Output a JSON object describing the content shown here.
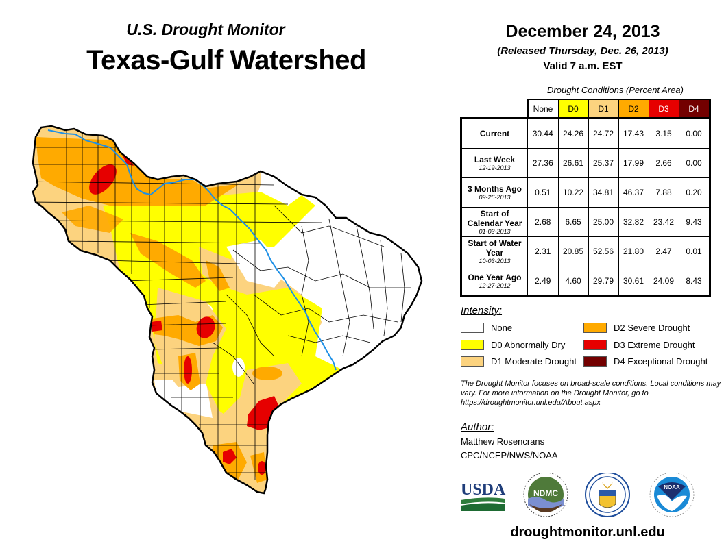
{
  "header": {
    "subtitle": "U.S. Drought Monitor",
    "title": "Texas-Gulf Watershed",
    "date": "December 24, 2013",
    "released": "(Released Thursday, Dec. 26, 2013)",
    "valid": "Valid 7 a.m. EST"
  },
  "colors": {
    "none": "#ffffff",
    "D0": "#ffff00",
    "D1": "#fcd37f",
    "D2": "#ffaa00",
    "D3": "#e60000",
    "D4": "#730000",
    "river": "#1e90e6"
  },
  "table": {
    "caption": "Drought Conditions (Percent Area)",
    "columns": [
      "None",
      "D0",
      "D1",
      "D2",
      "D3",
      "D4"
    ],
    "rows": [
      {
        "label": "Current",
        "date": "",
        "values": [
          "30.44",
          "24.26",
          "24.72",
          "17.43",
          "3.15",
          "0.00"
        ]
      },
      {
        "label": "Last Week",
        "date": "12-19-2013",
        "values": [
          "27.36",
          "26.61",
          "25.37",
          "17.99",
          "2.66",
          "0.00"
        ]
      },
      {
        "label": "3 Months Ago",
        "date": "09-26-2013",
        "values": [
          "0.51",
          "10.22",
          "34.81",
          "46.37",
          "7.88",
          "0.20"
        ]
      },
      {
        "label": "Start of Calendar Year",
        "date": "01-03-2013",
        "values": [
          "2.68",
          "6.65",
          "25.00",
          "32.82",
          "23.42",
          "9.43"
        ]
      },
      {
        "label": "Start of Water Year",
        "date": "10-03-2013",
        "values": [
          "2.31",
          "20.85",
          "52.56",
          "21.80",
          "2.47",
          "0.01"
        ]
      },
      {
        "label": "One Year Ago",
        "date": "12-27-2012",
        "values": [
          "2.49",
          "4.60",
          "29.79",
          "30.61",
          "24.09",
          "8.43"
        ]
      }
    ]
  },
  "legend": {
    "title": "Intensity:",
    "items": [
      {
        "key": "none",
        "label": "None"
      },
      {
        "key": "D0",
        "label": "D0 Abnormally Dry"
      },
      {
        "key": "D1",
        "label": "D1 Moderate Drought"
      },
      {
        "key": "D2",
        "label": "D2 Severe Drought"
      },
      {
        "key": "D3",
        "label": "D3 Extreme Drought"
      },
      {
        "key": "D4",
        "label": "D4 Exceptional Drought"
      }
    ]
  },
  "note": "The Drought Monitor focuses on broad-scale conditions. Local conditions may vary. For more information on the Drought Monitor, go to https://droughtmonitor.unl.edu/About.aspx",
  "author": {
    "title": "Author:",
    "name": "Matthew Rosencrans",
    "org": "CPC/NCEP/NWS/NOAA"
  },
  "logos": {
    "usda": "USDA",
    "ndmc": "NDMC",
    "commerce": "commerce-seal",
    "noaa": "NOAA"
  },
  "site": "droughtmonitor.unl.edu"
}
